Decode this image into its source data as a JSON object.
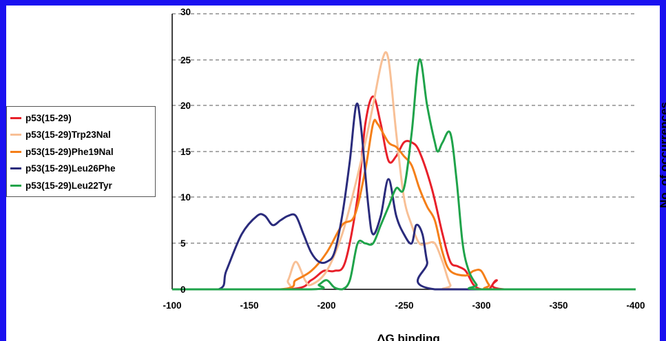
{
  "chart_data": {
    "type": "line",
    "xlabel": "ΔG binding",
    "ylabel": "No. of occurrences",
    "xlim": [
      -100,
      -400
    ],
    "ylim": [
      0,
      30
    ],
    "x_ticks": [
      "-100",
      "-150",
      "-200",
      "-250",
      "-300",
      "-350",
      "-400"
    ],
    "y_ticks": [
      "0",
      "5",
      "10",
      "15",
      "20",
      "25",
      "30"
    ],
    "grid": "horizontal dashed",
    "legend_position": "left",
    "series": [
      {
        "name": "p53(15-29)",
        "color": "#e8202a",
        "points": [
          [
            -100,
            0
          ],
          [
            -175,
            0
          ],
          [
            -190,
            1
          ],
          [
            -198,
            2
          ],
          [
            -205,
            2
          ],
          [
            -212,
            3
          ],
          [
            -220,
            10
          ],
          [
            -225,
            18
          ],
          [
            -230,
            21
          ],
          [
            -235,
            18
          ],
          [
            -240,
            14
          ],
          [
            -245,
            14.5
          ],
          [
            -250,
            16
          ],
          [
            -255,
            16
          ],
          [
            -260,
            15
          ],
          [
            -268,
            11
          ],
          [
            -275,
            6
          ],
          [
            -280,
            3
          ],
          [
            -285,
            2.5
          ],
          [
            -290,
            2
          ],
          [
            -295,
            0.5
          ],
          [
            -300,
            0
          ],
          [
            -305,
            0
          ],
          [
            -310,
            1
          ],
          [
            -315,
            0
          ],
          [
            -400,
            0
          ]
        ]
      },
      {
        "name": "p53(15-29)Trp23Nal",
        "color": "#f8c096",
        "points": [
          [
            -100,
            0
          ],
          [
            -170,
            0
          ],
          [
            -175,
            1
          ],
          [
            -180,
            3
          ],
          [
            -186,
            1
          ],
          [
            -190,
            0.5
          ],
          [
            -200,
            2
          ],
          [
            -210,
            6
          ],
          [
            -218,
            11
          ],
          [
            -225,
            16
          ],
          [
            -230,
            20
          ],
          [
            -236,
            25
          ],
          [
            -240,
            25
          ],
          [
            -245,
            17
          ],
          [
            -250,
            10
          ],
          [
            -255,
            7
          ],
          [
            -260,
            5
          ],
          [
            -265,
            5
          ],
          [
            -270,
            5
          ],
          [
            -275,
            3
          ],
          [
            -280,
            0.5
          ],
          [
            -285,
            0
          ],
          [
            -400,
            0
          ]
        ]
      },
      {
        "name": "p53(15-29)Phe19Nal",
        "color": "#f57f18",
        "points": [
          [
            -100,
            0
          ],
          [
            -170,
            0
          ],
          [
            -180,
            1
          ],
          [
            -190,
            2
          ],
          [
            -200,
            4
          ],
          [
            -210,
            7
          ],
          [
            -218,
            8
          ],
          [
            -225,
            13
          ],
          [
            -230,
            18
          ],
          [
            -233,
            18
          ],
          [
            -240,
            16
          ],
          [
            -245,
            15.5
          ],
          [
            -250,
            14.5
          ],
          [
            -255,
            13.5
          ],
          [
            -260,
            11
          ],
          [
            -265,
            9
          ],
          [
            -270,
            7.5
          ],
          [
            -275,
            4
          ],
          [
            -280,
            2
          ],
          [
            -290,
            1.5
          ],
          [
            -295,
            2
          ],
          [
            -300,
            2
          ],
          [
            -305,
            0.5
          ],
          [
            -310,
            0
          ],
          [
            -400,
            0
          ]
        ]
      },
      {
        "name": "p53(15-29)Leu26Phe",
        "color": "#2a2b7c",
        "points": [
          [
            -100,
            0
          ],
          [
            -130,
            0
          ],
          [
            -135,
            2
          ],
          [
            -145,
            6
          ],
          [
            -155,
            8
          ],
          [
            -160,
            8
          ],
          [
            -165,
            7
          ],
          [
            -170,
            7.5
          ],
          [
            -175,
            8
          ],
          [
            -180,
            8
          ],
          [
            -185,
            6
          ],
          [
            -190,
            4
          ],
          [
            -195,
            3
          ],
          [
            -200,
            3
          ],
          [
            -205,
            4
          ],
          [
            -210,
            8
          ],
          [
            -215,
            14
          ],
          [
            -219,
            20
          ],
          [
            -222,
            18
          ],
          [
            -227,
            9
          ],
          [
            -230,
            6
          ],
          [
            -235,
            8
          ],
          [
            -240,
            12
          ],
          [
            -245,
            8
          ],
          [
            -250,
            6
          ],
          [
            -255,
            5
          ],
          [
            -258,
            7
          ],
          [
            -262,
            6
          ],
          [
            -265,
            3
          ],
          [
            -270,
            0
          ],
          [
            -400,
            0
          ]
        ]
      },
      {
        "name": "p53(15-29)Leu22Tyr",
        "color": "#1fa34a",
        "points": [
          [
            -100,
            0
          ],
          [
            -190,
            0
          ],
          [
            -195,
            0.5
          ],
          [
            -200,
            1
          ],
          [
            -205,
            0.2
          ],
          [
            -210,
            0
          ],
          [
            -215,
            1
          ],
          [
            -220,
            5
          ],
          [
            -225,
            5
          ],
          [
            -230,
            5
          ],
          [
            -235,
            7
          ],
          [
            -240,
            9
          ],
          [
            -245,
            11
          ],
          [
            -250,
            11
          ],
          [
            -255,
            17
          ],
          [
            -260,
            25
          ],
          [
            -265,
            20
          ],
          [
            -270,
            16
          ],
          [
            -272,
            15
          ],
          [
            -275,
            16
          ],
          [
            -280,
            17
          ],
          [
            -284,
            12
          ],
          [
            -288,
            5
          ],
          [
            -292,
            2
          ],
          [
            -297,
            0.5
          ],
          [
            -300,
            0
          ],
          [
            -400,
            0
          ]
        ]
      }
    ]
  }
}
